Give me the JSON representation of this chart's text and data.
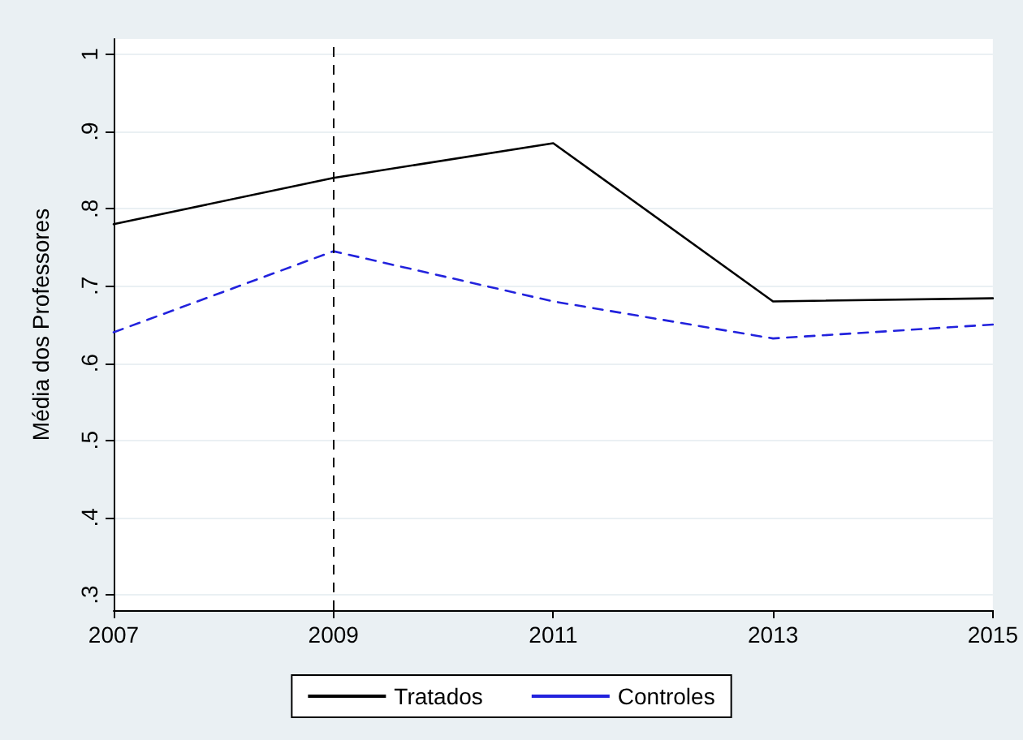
{
  "chart_data": {
    "type": "line",
    "ylabel": "Média dos Professores",
    "x": [
      2007,
      2009,
      2011,
      2013,
      2015
    ],
    "series": [
      {
        "name": "Tratados",
        "color": "#000000",
        "line_style": "solid",
        "values": [
          0.78,
          0.84,
          0.885,
          0.68,
          0.684
        ]
      },
      {
        "name": "Controles",
        "color": "#2222dd",
        "line_style": "dashed",
        "values": [
          0.64,
          0.745,
          0.68,
          0.632,
          0.65
        ]
      }
    ],
    "xlim": [
      2007,
      2015
    ],
    "xticks": [
      2007,
      2009,
      2011,
      2013,
      2015
    ],
    "ylim": [
      0.28,
      1.02
    ],
    "yticks": [
      {
        "value": 0.3,
        "label": ".3"
      },
      {
        "value": 0.4,
        "label": ".4"
      },
      {
        "value": 0.5,
        "label": ".5"
      },
      {
        "value": 0.6,
        "label": ".6"
      },
      {
        "value": 0.7,
        "label": ".7"
      },
      {
        "value": 0.8,
        "label": ".8"
      },
      {
        "value": 0.9,
        "label": ".9"
      },
      1
    ],
    "ref_lines": [
      {
        "axis": "x",
        "value": 2009,
        "color": "#000000",
        "line_style": "dashed"
      }
    ],
    "grid": "y",
    "legend": "bottom",
    "marker": "none"
  }
}
